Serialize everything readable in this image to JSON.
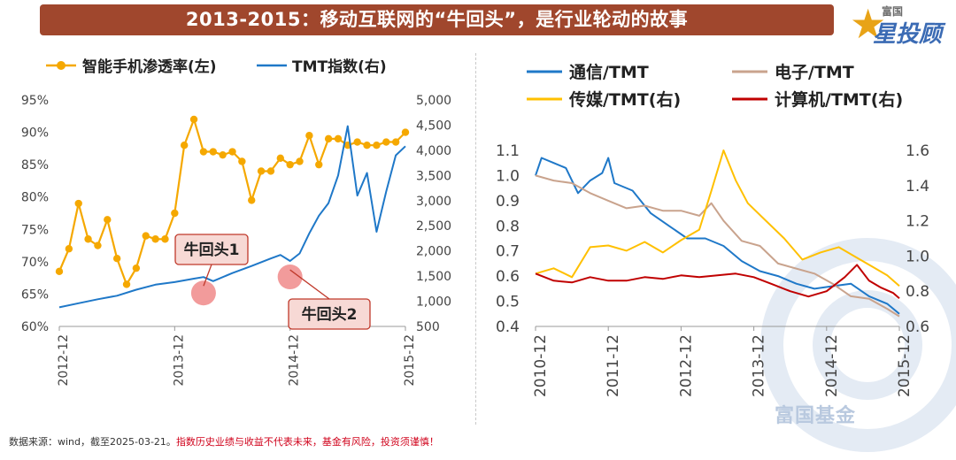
{
  "header": {
    "title": "2013-2015：移动互联网的“牛回头”，是行业轮动的故事",
    "brand_small": "富国",
    "brand_big": "星投顾",
    "watermark": "富国基金"
  },
  "footer": {
    "source": "数据来源：wind，截至2025-03-21。",
    "disclaimer": "指数历史业绩与收益不代表未来，基金有风险，投资须谨慎！"
  },
  "colors": {
    "title_bg": "#a0472d",
    "orange": "#f5a800",
    "blue": "#1f78c8",
    "tan": "#c9a38d",
    "yellow": "#ffc000",
    "red": "#c00000",
    "callout_fill": "#f7d9d5",
    "callout_border": "#c0392b",
    "bubble": "#f08a8a"
  },
  "chart_data": [
    {
      "type": "line",
      "legend": [
        "智能手机渗透率(左)",
        "TMT指数(右)"
      ],
      "x_ticks": [
        "2012-12",
        "2013-12",
        "2014-12",
        "2015-12"
      ],
      "y_left_ticks": [
        "95%",
        "90%",
        "85%",
        "80%",
        "75%",
        "70%",
        "65%",
        "60%"
      ],
      "y_left_range": [
        60,
        95
      ],
      "y_right_ticks": [
        "5,000",
        "4,500",
        "4,000",
        "3,500",
        "3,000",
        "2,500",
        "2,000",
        "1,500",
        "1,000",
        "500"
      ],
      "y_right_range": [
        500,
        5000
      ],
      "x_range": [
        "2012-12",
        "2015-12"
      ],
      "series": [
        {
          "name": "智能手机渗透率(左)",
          "axis": "left",
          "marker": "circle",
          "points": [
            [
              "2012-12",
              68.5
            ],
            [
              "2013-01",
              72.0
            ],
            [
              "2013-02",
              79.0
            ],
            [
              "2013-03",
              73.5
            ],
            [
              "2013-04",
              72.5
            ],
            [
              "2013-05",
              76.5
            ],
            [
              "2013-06",
              70.5
            ],
            [
              "2013-07",
              66.5
            ],
            [
              "2013-08",
              69.0
            ],
            [
              "2013-09",
              74.0
            ],
            [
              "2013-10",
              73.5
            ],
            [
              "2013-11",
              73.5
            ],
            [
              "2013-12",
              77.5
            ],
            [
              "2014-01",
              88.0
            ],
            [
              "2014-02",
              92.0
            ],
            [
              "2014-03",
              87.0
            ],
            [
              "2014-04",
              87.0
            ],
            [
              "2014-05",
              86.5
            ],
            [
              "2014-06",
              87.0
            ],
            [
              "2014-07",
              85.5
            ],
            [
              "2014-08",
              79.5
            ],
            [
              "2014-09",
              84.0
            ],
            [
              "2014-10",
              84.0
            ],
            [
              "2014-11",
              86.0
            ],
            [
              "2014-12",
              85.0
            ],
            [
              "2015-01",
              85.5
            ],
            [
              "2015-02",
              89.5
            ],
            [
              "2015-03",
              85.0
            ],
            [
              "2015-04",
              89.0
            ],
            [
              "2015-05",
              89.0
            ],
            [
              "2015-06",
              88.0
            ],
            [
              "2015-07",
              88.5
            ],
            [
              "2015-08",
              88.0
            ],
            [
              "2015-09",
              88.0
            ],
            [
              "2015-10",
              88.5
            ],
            [
              "2015-11",
              88.5
            ],
            [
              "2015-12",
              90.0
            ]
          ]
        },
        {
          "name": "TMT指数(右)",
          "axis": "right",
          "points": [
            [
              "2012-12",
              880
            ],
            [
              "2013-02",
              960
            ],
            [
              "2013-04",
              1040
            ],
            [
              "2013-06",
              1110
            ],
            [
              "2013-08",
              1230
            ],
            [
              "2013-10",
              1330
            ],
            [
              "2013-12",
              1380
            ],
            [
              "2014-02",
              1450
            ],
            [
              "2014-03",
              1480
            ],
            [
              "2014-04",
              1400
            ],
            [
              "2014-06",
              1560
            ],
            [
              "2014-08",
              1700
            ],
            [
              "2014-10",
              1850
            ],
            [
              "2014-11",
              1920
            ],
            [
              "2014-12",
              1800
            ],
            [
              "2015-01",
              1950
            ],
            [
              "2015-02",
              2350
            ],
            [
              "2015-03",
              2700
            ],
            [
              "2015-04",
              2950
            ],
            [
              "2015-05",
              3500
            ],
            [
              "2015-06",
              4480
            ],
            [
              "2015-07",
              3100
            ],
            [
              "2015-08",
              3550
            ],
            [
              "2015-09",
              2380
            ],
            [
              "2015-10",
              3180
            ],
            [
              "2015-11",
              3900
            ],
            [
              "2015-12",
              4080
            ]
          ]
        }
      ],
      "annotations": [
        {
          "text": "牛回头1",
          "date": "2014-03",
          "value": 1480
        },
        {
          "text": "牛回头2",
          "date": "2014-12",
          "value": 1800
        }
      ]
    },
    {
      "type": "line",
      "legend": [
        "通信/TMT",
        "电子/TMT",
        "传媒/TMT(右)",
        "计算机/TMT(右)"
      ],
      "x_ticks": [
        "2010-12",
        "2011-12",
        "2012-12",
        "2013-12",
        "2014-12",
        "2015-12"
      ],
      "y_left_ticks": [
        "1.1",
        "1.0",
        "0.9",
        "0.8",
        "0.7",
        "0.6",
        "0.5",
        "0.4"
      ],
      "y_left_range": [
        0.4,
        1.1
      ],
      "y_right_ticks": [
        "1.6",
        "1.4",
        "1.2",
        "1.0",
        "0.8",
        "0.6"
      ],
      "y_right_range": [
        0.6,
        1.6
      ],
      "x_range": [
        "2010-12",
        "2015-12"
      ],
      "series": [
        {
          "name": "通信/TMT",
          "axis": "left",
          "points": [
            [
              "2010-12",
              1.0
            ],
            [
              "2011-01",
              1.07
            ],
            [
              "2011-03",
              1.05
            ],
            [
              "2011-05",
              1.03
            ],
            [
              "2011-07",
              0.93
            ],
            [
              "2011-09",
              0.98
            ],
            [
              "2011-11",
              1.01
            ],
            [
              "2011-12",
              1.07
            ],
            [
              "2012-01",
              0.97
            ],
            [
              "2012-04",
              0.94
            ],
            [
              "2012-07",
              0.85
            ],
            [
              "2012-10",
              0.8
            ],
            [
              "2013-01",
              0.75
            ],
            [
              "2013-04",
              0.75
            ],
            [
              "2013-07",
              0.72
            ],
            [
              "2013-10",
              0.66
            ],
            [
              "2014-01",
              0.62
            ],
            [
              "2014-04",
              0.6
            ],
            [
              "2014-07",
              0.57
            ],
            [
              "2014-10",
              0.55
            ],
            [
              "2015-01",
              0.56
            ],
            [
              "2015-04",
              0.57
            ],
            [
              "2015-07",
              0.52
            ],
            [
              "2015-10",
              0.49
            ],
            [
              "2015-12",
              0.45
            ]
          ]
        },
        {
          "name": "电子/TMT",
          "axis": "left",
          "points": [
            [
              "2010-12",
              1.0
            ],
            [
              "2011-03",
              0.98
            ],
            [
              "2011-06",
              0.97
            ],
            [
              "2011-09",
              0.93
            ],
            [
              "2011-12",
              0.9
            ],
            [
              "2012-03",
              0.87
            ],
            [
              "2012-06",
              0.88
            ],
            [
              "2012-09",
              0.86
            ],
            [
              "2012-12",
              0.86
            ],
            [
              "2013-03",
              0.84
            ],
            [
              "2013-05",
              0.89
            ],
            [
              "2013-07",
              0.82
            ],
            [
              "2013-10",
              0.74
            ],
            [
              "2014-01",
              0.72
            ],
            [
              "2014-04",
              0.65
            ],
            [
              "2014-07",
              0.63
            ],
            [
              "2014-10",
              0.61
            ],
            [
              "2015-01",
              0.57
            ],
            [
              "2015-04",
              0.52
            ],
            [
              "2015-07",
              0.51
            ],
            [
              "2015-10",
              0.47
            ],
            [
              "2015-12",
              0.44
            ]
          ]
        },
        {
          "name": "传媒/TMT(右)",
          "axis": "right",
          "points": [
            [
              "2010-12",
              0.9
            ],
            [
              "2011-03",
              0.93
            ],
            [
              "2011-06",
              0.88
            ],
            [
              "2011-09",
              1.05
            ],
            [
              "2011-12",
              1.06
            ],
            [
              "2012-03",
              1.03
            ],
            [
              "2012-06",
              1.08
            ],
            [
              "2012-09",
              1.02
            ],
            [
              "2012-12",
              1.09
            ],
            [
              "2013-03",
              1.15
            ],
            [
              "2013-05",
              1.37
            ],
            [
              "2013-07",
              1.6
            ],
            [
              "2013-09",
              1.43
            ],
            [
              "2013-11",
              1.3
            ],
            [
              "2014-02",
              1.2
            ],
            [
              "2014-05",
              1.1
            ],
            [
              "2014-08",
              0.98
            ],
            [
              "2014-11",
              1.02
            ],
            [
              "2015-02",
              1.05
            ],
            [
              "2015-05",
              0.99
            ],
            [
              "2015-08",
              0.93
            ],
            [
              "2015-10",
              0.89
            ],
            [
              "2015-12",
              0.83
            ]
          ]
        },
        {
          "name": "计算机/TMT(右)",
          "axis": "right",
          "points": [
            [
              "2010-12",
              0.9
            ],
            [
              "2011-03",
              0.86
            ],
            [
              "2011-06",
              0.85
            ],
            [
              "2011-09",
              0.88
            ],
            [
              "2011-12",
              0.86
            ],
            [
              "2012-03",
              0.86
            ],
            [
              "2012-06",
              0.88
            ],
            [
              "2012-09",
              0.87
            ],
            [
              "2012-12",
              0.89
            ],
            [
              "2013-03",
              0.88
            ],
            [
              "2013-06",
              0.89
            ],
            [
              "2013-09",
              0.9
            ],
            [
              "2013-12",
              0.88
            ],
            [
              "2014-03",
              0.84
            ],
            [
              "2014-06",
              0.8
            ],
            [
              "2014-09",
              0.77
            ],
            [
              "2014-12",
              0.8
            ],
            [
              "2015-03",
              0.88
            ],
            [
              "2015-05",
              0.95
            ],
            [
              "2015-07",
              0.86
            ],
            [
              "2015-09",
              0.82
            ],
            [
              "2015-11",
              0.79
            ],
            [
              "2015-12",
              0.76
            ]
          ]
        }
      ]
    }
  ]
}
